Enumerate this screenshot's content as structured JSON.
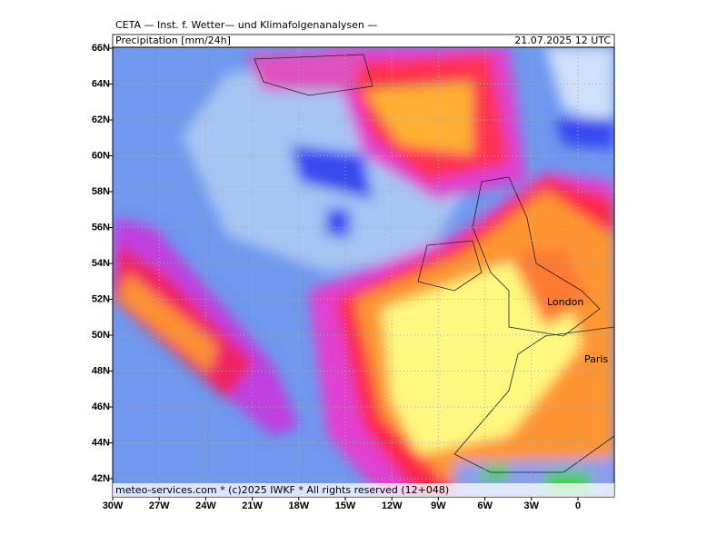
{
  "header": {
    "institute": "CETA — Inst. f. Wetter— und Klimafolgenanalysen —",
    "product": "Precipitation [mm/24h]",
    "valid": "21.07.2025 12 UTC"
  },
  "map": {
    "lat_labels": [
      "66N",
      "64N",
      "62N",
      "60N",
      "58N",
      "56N",
      "54N",
      "52N",
      "50N",
      "48N",
      "46N",
      "44N",
      "42N"
    ],
    "lon_labels": [
      "30W",
      "27W",
      "24W",
      "21W",
      "18W",
      "15W",
      "12W",
      "9W",
      "6W",
      "3W",
      "0"
    ],
    "cities": [
      "London",
      "Paris"
    ],
    "footer": "meteo-services.com * (c)2025 IWKF * All rights reserved (12+048)"
  }
}
